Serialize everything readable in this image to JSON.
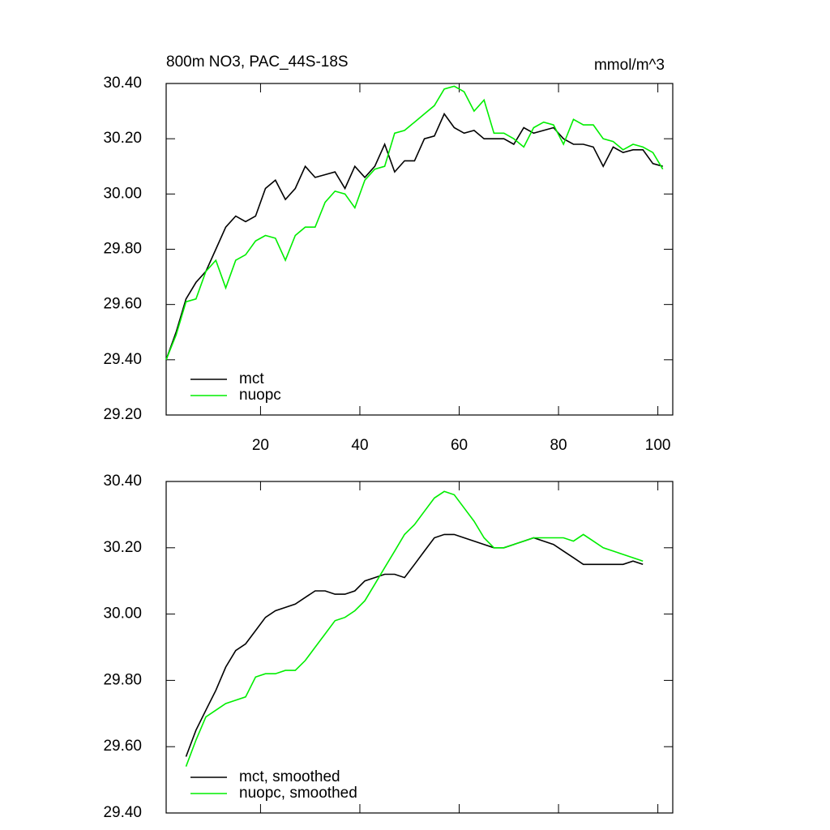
{
  "chart_data": [
    {
      "type": "line",
      "title": "800m NO3, PAC_44S-18S",
      "units": "mmol/m^3",
      "x": [
        1,
        3,
        5,
        7,
        9,
        11,
        13,
        15,
        17,
        19,
        21,
        23,
        25,
        27,
        29,
        31,
        33,
        35,
        37,
        39,
        41,
        43,
        45,
        47,
        49,
        51,
        53,
        55,
        57,
        59,
        61,
        63,
        65,
        67,
        69,
        71,
        73,
        75,
        77,
        79,
        81,
        83,
        85,
        87,
        89,
        91,
        93,
        95,
        97,
        99,
        101
      ],
      "series": [
        {
          "name": "mct",
          "color": "#000000",
          "values": [
            29.4,
            29.5,
            29.62,
            29.68,
            29.72,
            29.8,
            29.88,
            29.92,
            29.9,
            29.92,
            30.02,
            30.05,
            29.98,
            30.02,
            30.1,
            30.06,
            30.07,
            30.08,
            30.02,
            30.1,
            30.06,
            30.1,
            30.18,
            30.08,
            30.12,
            30.12,
            30.2,
            30.21,
            30.29,
            30.24,
            30.22,
            30.23,
            30.2,
            30.2,
            30.2,
            30.18,
            30.24,
            30.22,
            30.23,
            30.24,
            30.2,
            30.18,
            30.18,
            30.17,
            30.1,
            30.17,
            30.15,
            30.16,
            30.16,
            30.11,
            30.1
          ]
        },
        {
          "name": "nuopc",
          "color": "#00ee00",
          "values": [
            29.4,
            29.49,
            29.61,
            29.62,
            29.72,
            29.76,
            29.66,
            29.76,
            29.78,
            29.83,
            29.85,
            29.84,
            29.76,
            29.85,
            29.88,
            29.88,
            29.97,
            30.01,
            30.0,
            29.95,
            30.05,
            30.09,
            30.1,
            30.22,
            30.23,
            30.26,
            30.29,
            30.32,
            30.38,
            30.39,
            30.37,
            30.3,
            30.34,
            30.22,
            30.22,
            30.2,
            30.17,
            30.24,
            30.26,
            30.25,
            30.18,
            30.27,
            30.25,
            30.25,
            30.2,
            30.19,
            30.16,
            30.18,
            30.17,
            30.15,
            30.09
          ]
        }
      ],
      "xlim": [
        1,
        103
      ],
      "xticks": [
        20,
        40,
        60,
        80,
        100
      ],
      "xtick_labels": true,
      "ylim": [
        29.2,
        30.4
      ],
      "yticks": [
        {
          "value": 29.2,
          "label": "29.20"
        },
        {
          "value": 29.4,
          "label": "29.40"
        },
        {
          "value": 29.6,
          "label": "29.60"
        },
        {
          "value": 29.8,
          "label": "29.80"
        },
        {
          "value": 30.0,
          "label": "30.00"
        },
        {
          "value": 30.2,
          "label": "30.20"
        },
        {
          "value": 30.4,
          "label": "30.40"
        }
      ],
      "legend": "lower left"
    },
    {
      "type": "line",
      "x": [
        5,
        7,
        9,
        11,
        13,
        15,
        17,
        19,
        21,
        23,
        25,
        27,
        29,
        31,
        33,
        35,
        37,
        39,
        41,
        43,
        45,
        47,
        49,
        51,
        53,
        55,
        57,
        59,
        61,
        63,
        65,
        67,
        69,
        71,
        73,
        75,
        77,
        79,
        81,
        83,
        85,
        87,
        89,
        91,
        93,
        95,
        97
      ],
      "series": [
        {
          "name": "mct, smoothed",
          "color": "#000000",
          "values": [
            29.57,
            29.65,
            29.71,
            29.77,
            29.84,
            29.89,
            29.91,
            29.95,
            29.99,
            30.01,
            30.02,
            30.03,
            30.05,
            30.07,
            30.07,
            30.06,
            30.06,
            30.07,
            30.1,
            30.11,
            30.12,
            30.12,
            30.11,
            30.15,
            30.19,
            30.23,
            30.24,
            30.24,
            30.23,
            30.22,
            30.21,
            30.2,
            30.2,
            30.21,
            30.22,
            30.23,
            30.22,
            30.21,
            30.19,
            30.17,
            30.15,
            30.15,
            30.15,
            30.15,
            30.15,
            30.16,
            30.15
          ]
        },
        {
          "name": "nuopc, smoothed",
          "color": "#00ee00",
          "values": [
            29.54,
            29.62,
            29.69,
            29.71,
            29.73,
            29.74,
            29.75,
            29.81,
            29.82,
            29.82,
            29.83,
            29.83,
            29.86,
            29.9,
            29.94,
            29.98,
            29.99,
            30.01,
            30.04,
            30.09,
            30.14,
            30.19,
            30.24,
            30.27,
            30.31,
            30.35,
            30.37,
            30.36,
            30.32,
            30.28,
            30.23,
            30.2,
            30.2,
            30.21,
            30.22,
            30.23,
            30.23,
            30.23,
            30.23,
            30.22,
            30.24,
            30.22,
            30.2,
            30.19,
            30.18,
            30.17,
            30.16
          ]
        }
      ],
      "xlim": [
        1,
        103
      ],
      "xticks": [
        20,
        40,
        60,
        80,
        100
      ],
      "xtick_labels": false,
      "ylim": [
        29.4,
        30.4
      ],
      "yticks": [
        {
          "value": 29.4,
          "label": "29.40"
        },
        {
          "value": 29.6,
          "label": "29.60"
        },
        {
          "value": 29.8,
          "label": "29.80"
        },
        {
          "value": 30.0,
          "label": "30.00"
        },
        {
          "value": 30.2,
          "label": "30.20"
        },
        {
          "value": 30.4,
          "label": "30.40"
        }
      ],
      "legend": "lower left"
    }
  ]
}
